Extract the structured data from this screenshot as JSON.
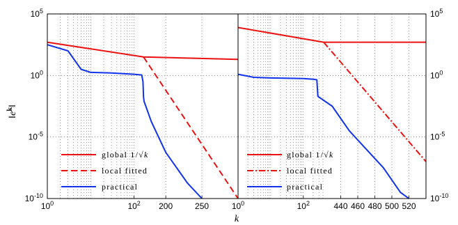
{
  "colors": {
    "global": "#ee1111",
    "local": "#ee1111",
    "practical": "#1133ee",
    "grid": "#555555"
  },
  "chart_data": [
    {
      "type": "line",
      "panel": "left",
      "xscale": "piecewise: log for k in [1,170], linear for k in [170,300]",
      "yscale": "log",
      "xlim": [
        1,
        300
      ],
      "ylim": [
        1e-10,
        100000
      ],
      "ylabel": "||e^k||",
      "xlabel": "",
      "x_ticks": [
        "10^0",
        "10^2",
        "200",
        "250"
      ],
      "y_ticks": [
        "10^5",
        "10^0",
        "10^-5",
        "10^-10"
      ],
      "grid": true,
      "legend_position": "lower-left",
      "series": [
        {
          "name": "global 1/√k",
          "style": "solid red",
          "points": [
            [
              1,
              501
            ],
            [
              165,
              31.6
            ],
            [
              300,
              20
            ]
          ]
        },
        {
          "name": "local fitted",
          "style": "dashed red",
          "points": [
            [
              165,
              31.6
            ],
            [
              300,
              1e-10
            ]
          ]
        },
        {
          "name": "practical",
          "style": "solid blue",
          "points": [
            [
              1,
              316
            ],
            [
              3,
              100
            ],
            [
              6,
              3.16
            ],
            [
              10,
              1.78
            ],
            [
              30,
              1.58
            ],
            [
              100,
              1.26
            ],
            [
              150,
              1.1
            ],
            [
              160,
              0.32
            ],
            [
              165,
              0.018
            ],
            [
              170,
              0.0079
            ],
            [
              180,
              0.000178
            ],
            [
              200,
              5.6e-07
            ],
            [
              230,
              1.8e-09
            ],
            [
              250,
              1e-10
            ]
          ]
        }
      ]
    },
    {
      "type": "line",
      "panel": "right",
      "xscale": "piecewise: log for k in [1,420], linear for k in [420,540]",
      "yscale": "log",
      "xlim": [
        1,
        540
      ],
      "ylim": [
        1e-10,
        100000
      ],
      "ylabel": "",
      "xlabel": "k",
      "x_ticks": [
        "10^0",
        "10^2",
        "440",
        "460",
        "480",
        "500",
        "520"
      ],
      "y_ticks": [
        "10^5",
        "10^0",
        "10^-5",
        "10^-10"
      ],
      "grid": true,
      "legend_position": "lower-left",
      "series": [
        {
          "name": "global 1/√k",
          "style": "solid red",
          "points": [
            [
              1,
              7900
            ],
            [
              420,
              501
            ],
            [
              540,
              501
            ]
          ]
        },
        {
          "name": "local fitted",
          "style": "dashed red",
          "points": [
            [
              420,
              501
            ],
            [
              540,
              1e-07
            ]
          ]
        },
        {
          "name": "practical",
          "style": "solid blue",
          "points": [
            [
              1,
              1.26
            ],
            [
              3,
              0.708
            ],
            [
              10,
              0.631
            ],
            [
              100,
              0.562
            ],
            [
              200,
              0.5
            ],
            [
              260,
              0.45
            ],
            [
              280,
              0.02
            ],
            [
              430,
              0.00316
            ],
            [
              450,
              3.2e-05
            ],
            [
              470,
              1e-06
            ],
            [
              490,
              3.16e-08
            ],
            [
              510,
              3.16e-10
            ],
            [
              520,
              1e-10
            ]
          ]
        }
      ]
    }
  ]
}
